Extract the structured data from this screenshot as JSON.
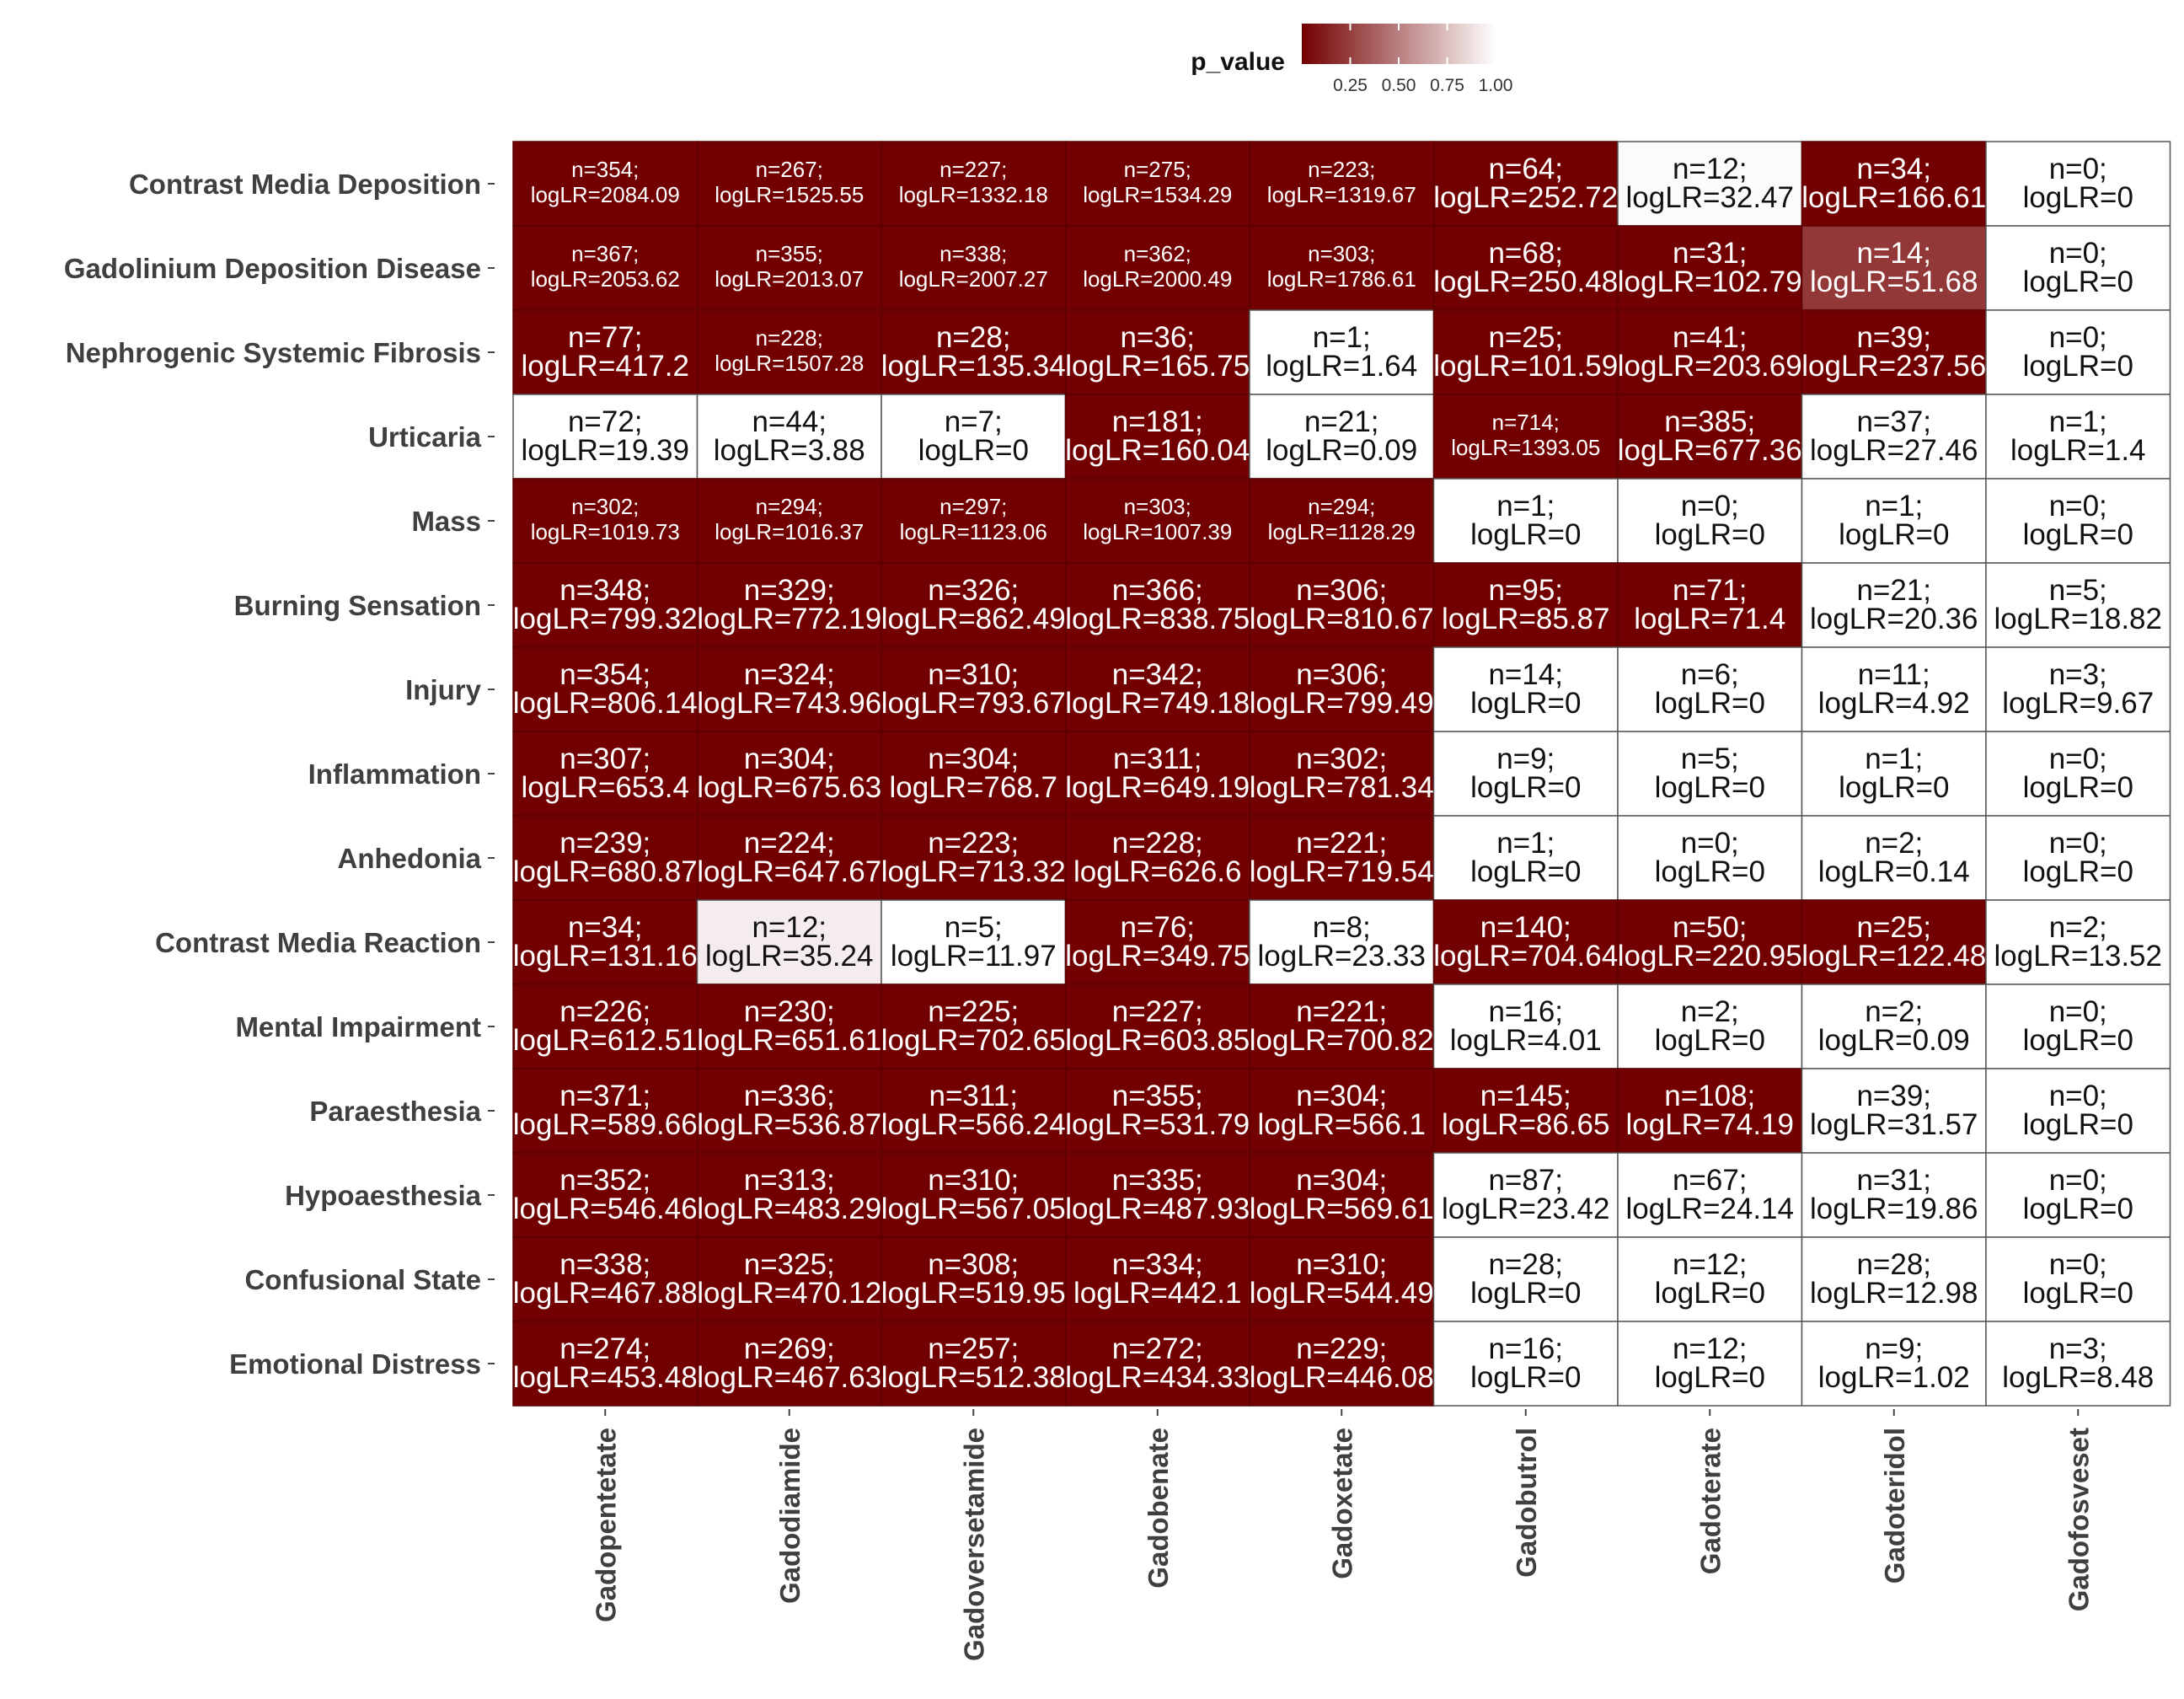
{
  "chart_data": {
    "type": "heatmap",
    "legend": {
      "title": "p_value",
      "placement": "top",
      "ticks": [
        "0.25",
        "0.50",
        "0.75",
        "1.00"
      ],
      "tick_values": [
        0.25,
        0.5,
        0.75,
        1.0
      ],
      "range": [
        0,
        1
      ],
      "color_low": "#730000",
      "color_high": "#ffffff"
    },
    "rows": [
      "Contrast Media Deposition",
      "Gadolinium Deposition Disease",
      "Nephrogenic Systemic Fibrosis",
      "Urticaria",
      "Mass",
      "Burning Sensation",
      "Injury",
      "Inflammation",
      "Anhedonia",
      "Contrast Media Reaction",
      "Mental Impairment",
      "Paraesthesia",
      "Hypoaesthesia",
      "Confusional State",
      "Emotional Distress"
    ],
    "columns": [
      "Gadopentetate",
      "Gadodiamide",
      "Gadoversetamide",
      "Gadobenate",
      "Gadoxetate",
      "Gadobutrol",
      "Gadoterate",
      "Gadoteridol",
      "Gadofosveset"
    ],
    "cells": [
      [
        {
          "n": "354",
          "logLR": "2084.09",
          "p": 0.0
        },
        {
          "n": "267",
          "logLR": "1525.55",
          "p": 0.0
        },
        {
          "n": "227",
          "logLR": "1332.18",
          "p": 0.0
        },
        {
          "n": "275",
          "logLR": "1534.29",
          "p": 0.0
        },
        {
          "n": "223",
          "logLR": "1319.67",
          "p": 0.0
        },
        {
          "n": "64",
          "logLR": "252.72",
          "p": 0.0
        },
        {
          "n": "12",
          "logLR": "32.47",
          "p": 0.98
        },
        {
          "n": "34",
          "logLR": "166.61",
          "p": 0.0
        },
        {
          "n": "0",
          "logLR": "0",
          "p": 1.0
        }
      ],
      [
        {
          "n": "367",
          "logLR": "2053.62",
          "p": 0.0
        },
        {
          "n": "355",
          "logLR": "2013.07",
          "p": 0.0
        },
        {
          "n": "338",
          "logLR": "2007.27",
          "p": 0.0
        },
        {
          "n": "362",
          "logLR": "2000.49",
          "p": 0.0
        },
        {
          "n": "303",
          "logLR": "1786.61",
          "p": 0.0
        },
        {
          "n": "68",
          "logLR": "250.48",
          "p": 0.0
        },
        {
          "n": "31",
          "logLR": "102.79",
          "p": 0.0
        },
        {
          "n": "14",
          "logLR": "51.68",
          "p": 0.22
        },
        {
          "n": "0",
          "logLR": "0",
          "p": 1.0
        }
      ],
      [
        {
          "n": "77",
          "logLR": "417.2",
          "p": 0.0
        },
        {
          "n": "228",
          "logLR": "1507.28",
          "p": 0.0
        },
        {
          "n": "28",
          "logLR": "135.34",
          "p": 0.0
        },
        {
          "n": "36",
          "logLR": "165.75",
          "p": 0.0
        },
        {
          "n": "1",
          "logLR": "1.64",
          "p": 1.0
        },
        {
          "n": "25",
          "logLR": "101.59",
          "p": 0.0
        },
        {
          "n": "41",
          "logLR": "203.69",
          "p": 0.0
        },
        {
          "n": "39",
          "logLR": "237.56",
          "p": 0.0
        },
        {
          "n": "0",
          "logLR": "0",
          "p": 1.0
        }
      ],
      [
        {
          "n": "72",
          "logLR": "19.39",
          "p": 1.0
        },
        {
          "n": "44",
          "logLR": "3.88",
          "p": 1.0
        },
        {
          "n": "7",
          "logLR": "0",
          "p": 1.0
        },
        {
          "n": "181",
          "logLR": "160.04",
          "p": 0.0
        },
        {
          "n": "21",
          "logLR": "0.09",
          "p": 1.0
        },
        {
          "n": "714",
          "logLR": "1393.05",
          "p": 0.0
        },
        {
          "n": "385",
          "logLR": "677.36",
          "p": 0.0
        },
        {
          "n": "37",
          "logLR": "27.46",
          "p": 1.0
        },
        {
          "n": "1",
          "logLR": "1.4",
          "p": 1.0
        }
      ],
      [
        {
          "n": "302",
          "logLR": "1019.73",
          "p": 0.0
        },
        {
          "n": "294",
          "logLR": "1016.37",
          "p": 0.0
        },
        {
          "n": "297",
          "logLR": "1123.06",
          "p": 0.0
        },
        {
          "n": "303",
          "logLR": "1007.39",
          "p": 0.0
        },
        {
          "n": "294",
          "logLR": "1128.29",
          "p": 0.0
        },
        {
          "n": "1",
          "logLR": "0",
          "p": 1.0
        },
        {
          "n": "0",
          "logLR": "0",
          "p": 1.0
        },
        {
          "n": "1",
          "logLR": "0",
          "p": 1.0
        },
        {
          "n": "0",
          "logLR": "0",
          "p": 1.0
        }
      ],
      [
        {
          "n": "348",
          "logLR": "799.32",
          "p": 0.0
        },
        {
          "n": "329",
          "logLR": "772.19",
          "p": 0.0
        },
        {
          "n": "326",
          "logLR": "862.49",
          "p": 0.0
        },
        {
          "n": "366",
          "logLR": "838.75",
          "p": 0.0
        },
        {
          "n": "306",
          "logLR": "810.67",
          "p": 0.0
        },
        {
          "n": "95",
          "logLR": "85.87",
          "p": 0.0
        },
        {
          "n": "71",
          "logLR": "71.4",
          "p": 0.0
        },
        {
          "n": "21",
          "logLR": "20.36",
          "p": 1.0
        },
        {
          "n": "5",
          "logLR": "18.82",
          "p": 1.0
        }
      ],
      [
        {
          "n": "354",
          "logLR": "806.14",
          "p": 0.0
        },
        {
          "n": "324",
          "logLR": "743.96",
          "p": 0.0
        },
        {
          "n": "310",
          "logLR": "793.67",
          "p": 0.0
        },
        {
          "n": "342",
          "logLR": "749.18",
          "p": 0.0
        },
        {
          "n": "306",
          "logLR": "799.49",
          "p": 0.0
        },
        {
          "n": "14",
          "logLR": "0",
          "p": 1.0
        },
        {
          "n": "6",
          "logLR": "0",
          "p": 1.0
        },
        {
          "n": "11",
          "logLR": "4.92",
          "p": 1.0
        },
        {
          "n": "3",
          "logLR": "9.67",
          "p": 1.0
        }
      ],
      [
        {
          "n": "307",
          "logLR": "653.4",
          "p": 0.0
        },
        {
          "n": "304",
          "logLR": "675.63",
          "p": 0.0
        },
        {
          "n": "304",
          "logLR": "768.7",
          "p": 0.0
        },
        {
          "n": "311",
          "logLR": "649.19",
          "p": 0.0
        },
        {
          "n": "302",
          "logLR": "781.34",
          "p": 0.0
        },
        {
          "n": "9",
          "logLR": "0",
          "p": 1.0
        },
        {
          "n": "5",
          "logLR": "0",
          "p": 1.0
        },
        {
          "n": "1",
          "logLR": "0",
          "p": 1.0
        },
        {
          "n": "0",
          "logLR": "0",
          "p": 1.0
        }
      ],
      [
        {
          "n": "239",
          "logLR": "680.87",
          "p": 0.0
        },
        {
          "n": "224",
          "logLR": "647.67",
          "p": 0.0
        },
        {
          "n": "223",
          "logLR": "713.32",
          "p": 0.0
        },
        {
          "n": "228",
          "logLR": "626.6",
          "p": 0.0
        },
        {
          "n": "221",
          "logLR": "719.54",
          "p": 0.0
        },
        {
          "n": "1",
          "logLR": "0",
          "p": 1.0
        },
        {
          "n": "0",
          "logLR": "0",
          "p": 1.0
        },
        {
          "n": "2",
          "logLR": "0.14",
          "p": 1.0
        },
        {
          "n": "0",
          "logLR": "0",
          "p": 1.0
        }
      ],
      [
        {
          "n": "34",
          "logLR": "131.16",
          "p": 0.0
        },
        {
          "n": "12",
          "logLR": "35.24",
          "p": 0.93
        },
        {
          "n": "5",
          "logLR": "11.97",
          "p": 1.0
        },
        {
          "n": "76",
          "logLR": "349.75",
          "p": 0.0
        },
        {
          "n": "8",
          "logLR": "23.33",
          "p": 1.0
        },
        {
          "n": "140",
          "logLR": "704.64",
          "p": 0.0
        },
        {
          "n": "50",
          "logLR": "220.95",
          "p": 0.0
        },
        {
          "n": "25",
          "logLR": "122.48",
          "p": 0.0
        },
        {
          "n": "2",
          "logLR": "13.52",
          "p": 1.0
        }
      ],
      [
        {
          "n": "226",
          "logLR": "612.51",
          "p": 0.0
        },
        {
          "n": "230",
          "logLR": "651.61",
          "p": 0.0
        },
        {
          "n": "225",
          "logLR": "702.65",
          "p": 0.0
        },
        {
          "n": "227",
          "logLR": "603.85",
          "p": 0.0
        },
        {
          "n": "221",
          "logLR": "700.82",
          "p": 0.0
        },
        {
          "n": "16",
          "logLR": "4.01",
          "p": 1.0
        },
        {
          "n": "2",
          "logLR": "0",
          "p": 1.0
        },
        {
          "n": "2",
          "logLR": "0.09",
          "p": 1.0
        },
        {
          "n": "0",
          "logLR": "0",
          "p": 1.0
        }
      ],
      [
        {
          "n": "371",
          "logLR": "589.66",
          "p": 0.0
        },
        {
          "n": "336",
          "logLR": "536.87",
          "p": 0.0
        },
        {
          "n": "311",
          "logLR": "566.24",
          "p": 0.0
        },
        {
          "n": "355",
          "logLR": "531.79",
          "p": 0.0
        },
        {
          "n": "304",
          "logLR": "566.1",
          "p": 0.0
        },
        {
          "n": "145",
          "logLR": "86.65",
          "p": 0.0
        },
        {
          "n": "108",
          "logLR": "74.19",
          "p": 0.0
        },
        {
          "n": "39",
          "logLR": "31.57",
          "p": 1.0
        },
        {
          "n": "0",
          "logLR": "0",
          "p": 1.0
        }
      ],
      [
        {
          "n": "352",
          "logLR": "546.46",
          "p": 0.0
        },
        {
          "n": "313",
          "logLR": "483.29",
          "p": 0.0
        },
        {
          "n": "310",
          "logLR": "567.05",
          "p": 0.0
        },
        {
          "n": "335",
          "logLR": "487.93",
          "p": 0.0
        },
        {
          "n": "304",
          "logLR": "569.61",
          "p": 0.0
        },
        {
          "n": "87",
          "logLR": "23.42",
          "p": 1.0
        },
        {
          "n": "67",
          "logLR": "24.14",
          "p": 1.0
        },
        {
          "n": "31",
          "logLR": "19.86",
          "p": 1.0
        },
        {
          "n": "0",
          "logLR": "0",
          "p": 1.0
        }
      ],
      [
        {
          "n": "338",
          "logLR": "467.88",
          "p": 0.0
        },
        {
          "n": "325",
          "logLR": "470.12",
          "p": 0.0
        },
        {
          "n": "308",
          "logLR": "519.95",
          "p": 0.0
        },
        {
          "n": "334",
          "logLR": "442.1",
          "p": 0.0
        },
        {
          "n": "310",
          "logLR": "544.49",
          "p": 0.0
        },
        {
          "n": "28",
          "logLR": "0",
          "p": 1.0
        },
        {
          "n": "12",
          "logLR": "0",
          "p": 1.0
        },
        {
          "n": "28",
          "logLR": "12.98",
          "p": 1.0
        },
        {
          "n": "0",
          "logLR": "0",
          "p": 1.0
        }
      ],
      [
        {
          "n": "274",
          "logLR": "453.48",
          "p": 0.0
        },
        {
          "n": "269",
          "logLR": "467.63",
          "p": 0.0
        },
        {
          "n": "257",
          "logLR": "512.38",
          "p": 0.0
        },
        {
          "n": "272",
          "logLR": "434.33",
          "p": 0.0
        },
        {
          "n": "229",
          "logLR": "446.08",
          "p": 0.0
        },
        {
          "n": "16",
          "logLR": "0",
          "p": 1.0
        },
        {
          "n": "12",
          "logLR": "0",
          "p": 1.0
        },
        {
          "n": "9",
          "logLR": "1.02",
          "p": 1.0
        },
        {
          "n": "3",
          "logLR": "8.48",
          "p": 1.0
        }
      ]
    ]
  }
}
